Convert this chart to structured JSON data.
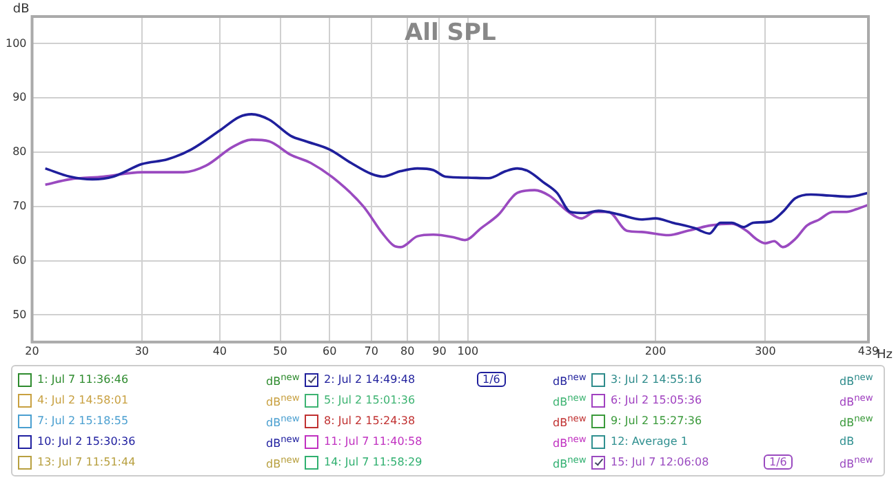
{
  "chart_data": {
    "type": "line",
    "title": "All SPL",
    "xlabel": "Hz",
    "ylabel": "dB",
    "log": "x",
    "grid": true,
    "legend": "bottom",
    "marker": "none",
    "line_style": "solid",
    "xlim": [
      20,
      439
    ],
    "xticks": [
      20,
      30,
      40,
      50,
      60,
      70,
      80,
      90,
      100,
      200,
      300,
      439
    ],
    "ylim": [
      45,
      105
    ],
    "yticks": [
      50,
      60,
      70,
      80,
      90,
      100
    ],
    "annotations": [
      "dB$^{new}$",
      "dB$^{new}$",
      "dB$^{new}$",
      "dB$^{new}$",
      "dB$^{new}$",
      "dB$^{new}$",
      "dB$^{new}$",
      "dB$^{new}$",
      "dB$^{new}$",
      "dB$^{new}$",
      "dB$^{new}$",
      "dB",
      "dB$^{new}$",
      "dB$^{new}$",
      "dB$^{new}$",
      "1/6",
      "1/6"
    ],
    "series": [
      {
        "name": "1: Jul 7 11:36:46",
        "color": "#2e8b2e"
      },
      {
        "name": "2: Jul 2 14:49:48",
        "color": "#1f1f9c",
        "x": [
          21,
          23,
          25,
          27,
          30,
          33,
          36,
          40,
          43,
          45,
          48,
          52,
          55,
          60,
          65,
          70,
          73,
          78,
          83,
          88,
          92,
          100,
          108,
          115,
          120,
          125,
          132,
          139,
          146,
          154,
          162,
          175,
          190,
          200,
          213,
          231,
          244,
          254,
          265,
          277,
          287,
          305,
          320,
          335,
          355,
          380,
          410,
          439
        ],
        "values": [
          77,
          75.5,
          75,
          75.5,
          77.8,
          78.7,
          80.5,
          84,
          86.5,
          87,
          86,
          83,
          82,
          80.5,
          78,
          76,
          75.5,
          76.5,
          77,
          76.7,
          75.5,
          75.3,
          75.2,
          76.5,
          77,
          76.5,
          74.5,
          72.5,
          69,
          68.8,
          69.2,
          68.5,
          67.6,
          67.8,
          67,
          66,
          65,
          67,
          67,
          66.2,
          67,
          67.2,
          69,
          71.5,
          72.2,
          72,
          71.8,
          72.5
        ]
      },
      {
        "name": "3: Jul 2 14:55:16",
        "color": "#2e8b8b"
      },
      {
        "name": "4: Jul 2 14:58:01",
        "color": "#c8a040"
      },
      {
        "name": "5: Jul 2 15:01:36",
        "color": "#3cb371"
      },
      {
        "name": "6: Jul 2 15:05:36",
        "color": "#a040c0"
      },
      {
        "name": "7: Jul 2 15:18:55",
        "color": "#4a9fd0"
      },
      {
        "name": "8: Jul 2 15:24:38",
        "color": "#c03030"
      },
      {
        "name": "9: Jul 2 15:27:36",
        "color": "#3a9a3a"
      },
      {
        "name": "10: Jul 2 15:30:36",
        "color": "#2020a0"
      },
      {
        "name": "11: Jul 7 11:40:58",
        "color": "#c030c0"
      },
      {
        "name": "12: Average 1",
        "color": "#309090"
      },
      {
        "name": "13: Jul 7 11:51:44",
        "color": "#b8a040"
      },
      {
        "name": "14: Jul 7 11:58:29",
        "color": "#30b070"
      },
      {
        "name": "15: Jul 7 12:06:08",
        "color": "#9a4ac0",
        "x": [
          21,
          23,
          26,
          30,
          35,
          38,
          42,
          45,
          48,
          52,
          56,
          62,
          68,
          73,
          76,
          78,
          83,
          88,
          95,
          99,
          105,
          112,
          120,
          128,
          135,
          145,
          152,
          160,
          168,
          180,
          190,
          210,
          225,
          245,
          265,
          280,
          290,
          300,
          310,
          320,
          335,
          350,
          365,
          385,
          405,
          420,
          439
        ],
        "values": [
          74,
          75,
          75.5,
          76.3,
          76.3,
          77.5,
          81,
          82.3,
          82,
          79.5,
          78,
          74.5,
          70,
          65,
          62.8,
          62.5,
          64.5,
          64.8,
          64.3,
          63.8,
          66,
          68.5,
          72.5,
          73,
          72,
          69,
          67.8,
          69,
          69,
          65.5,
          65.3,
          64.7,
          65.5,
          66.5,
          66.8,
          65.5,
          64,
          63.2,
          63.6,
          62.5,
          64,
          66.5,
          67.5,
          69,
          69,
          69.5,
          70.3
        ]
      }
    ]
  }
}
